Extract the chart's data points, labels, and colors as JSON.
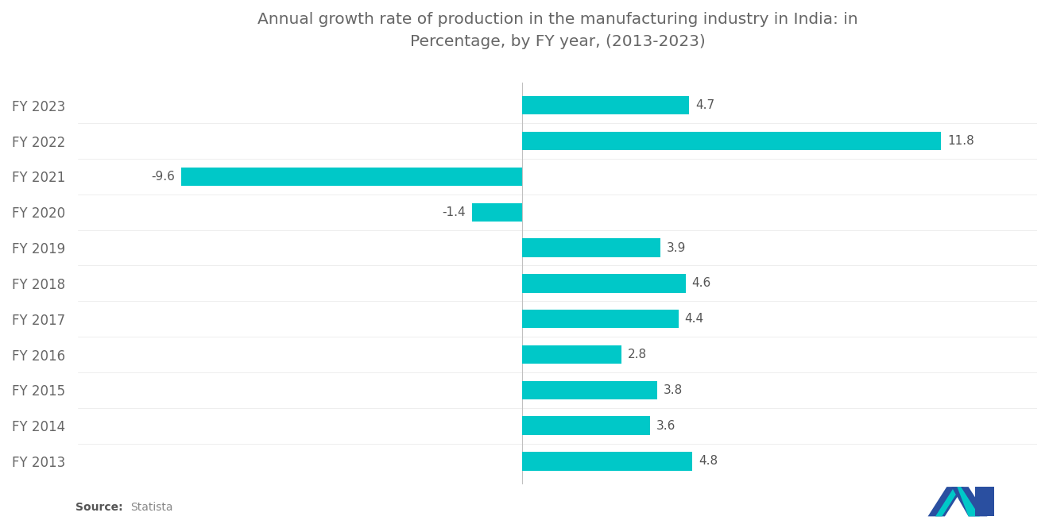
{
  "title": "Annual growth rate of production in the manufacturing industry in India: in\nPercentage, by FY year, (2013-2023)",
  "categories": [
    "FY 2013",
    "FY 2014",
    "FY 2015",
    "FY 2016",
    "FY 2017",
    "FY 2018",
    "FY 2019",
    "FY 2020",
    "FY 2021",
    "FY 2022",
    "FY 2023"
  ],
  "values": [
    4.8,
    3.6,
    3.8,
    2.8,
    4.4,
    4.6,
    3.9,
    -1.4,
    -9.6,
    11.8,
    4.7
  ],
  "bar_color": "#00C8C8",
  "background_color": "#ffffff",
  "title_color": "#666666",
  "label_color": "#666666",
  "value_label_color": "#555555",
  "source_bold": "Source:",
  "source_text": "Statista",
  "xlim": [
    -12.5,
    14.5
  ],
  "title_fontsize": 14.5,
  "label_fontsize": 12,
  "value_fontsize": 11
}
